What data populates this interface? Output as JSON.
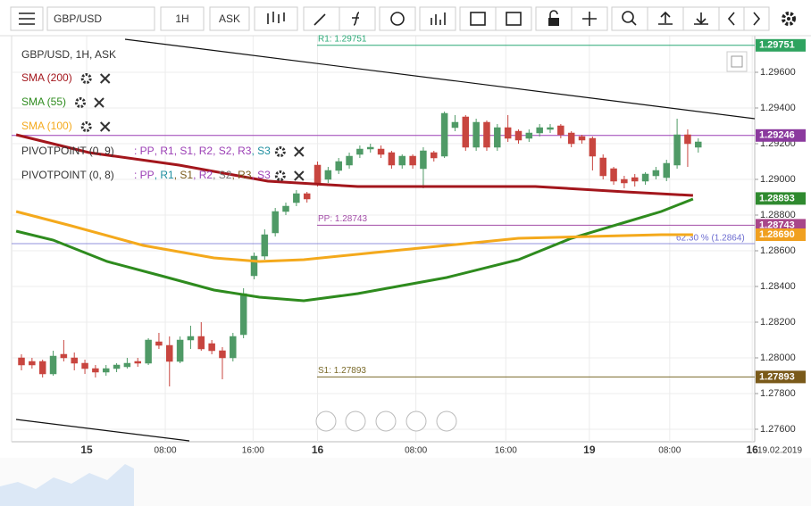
{
  "toolbar": {
    "symbol": "GBP/USD",
    "timeframe": "1H",
    "side": "ASK"
  },
  "chart_data": {
    "type": "candlestick",
    "legend_title": "GBP/USD, 1H, ASK",
    "open": [
      1.28,
      1.2798,
      1.2798,
      1.2791,
      1.2802,
      1.28,
      1.2797,
      1.2794,
      1.2792,
      1.2794,
      1.2795,
      1.2798,
      1.2797,
      1.2809,
      1.2807,
      1.2798,
      1.281,
      1.2812,
      1.2808,
      1.2804,
      1.28,
      1.2813,
      1.2846,
      1.2857,
      1.287,
      1.2882,
      1.2887,
      1.2892,
      1.2908,
      1.29,
      1.2905,
      1.2908,
      1.2914,
      1.2917,
      1.2917,
      1.2915,
      1.2908,
      1.2913,
      1.2906,
      1.2915,
      1.2913,
      1.2929,
      1.2935,
      1.2918,
      1.2932,
      1.2918,
      1.2929,
      1.2927,
      1.2923,
      1.2926,
      1.2928,
      1.293,
      1.2926,
      1.2924,
      1.2923,
      1.2912,
      1.2906,
      1.29,
      1.2901,
      1.2899,
      1.2902,
      1.2901,
      1.2908,
      1.2925,
      1.2918
    ],
    "high": [
      1.2802,
      1.28,
      1.2799,
      1.2804,
      1.281,
      1.2803,
      1.2799,
      1.2796,
      1.2796,
      1.2797,
      1.28,
      1.28,
      1.2811,
      1.2814,
      1.2812,
      1.2812,
      1.2818,
      1.282,
      1.281,
      1.2806,
      1.2814,
      1.2839,
      1.2859,
      1.2872,
      1.2884,
      1.2887,
      1.2894,
      1.2893,
      1.291,
      1.2907,
      1.2912,
      1.2915,
      1.2919,
      1.292,
      1.2919,
      1.2916,
      1.2914,
      1.2914,
      1.2918,
      1.2916,
      1.2938,
      1.2936,
      1.2936,
      1.2934,
      1.2933,
      1.2931,
      1.2936,
      1.2928,
      1.2928,
      1.2931,
      1.2931,
      1.2931,
      1.2927,
      1.2925,
      1.2924,
      1.2914,
      1.2907,
      1.2902,
      1.2903,
      1.2904,
      1.2907,
      1.2911,
      1.2934,
      1.2928,
      1.2923
    ],
    "low": [
      1.2793,
      1.2794,
      1.2789,
      1.279,
      1.2798,
      1.2793,
      1.2791,
      1.2789,
      1.279,
      1.2792,
      1.2794,
      1.2795,
      1.2796,
      1.2805,
      1.2784,
      1.2797,
      1.2805,
      1.2804,
      1.2802,
      1.2788,
      1.2798,
      1.2811,
      1.2844,
      1.2855,
      1.2868,
      1.288,
      1.2885,
      1.2887,
      1.2896,
      1.2898,
      1.2903,
      1.2906,
      1.2912,
      1.2915,
      1.2912,
      1.2906,
      1.2906,
      1.2906,
      1.2895,
      1.291,
      1.2912,
      1.2927,
      1.2916,
      1.2916,
      1.2916,
      1.2916,
      1.2921,
      1.292,
      1.2921,
      1.2924,
      1.2926,
      1.2923,
      1.2918,
      1.292,
      1.2905,
      1.29,
      1.2897,
      1.2895,
      1.2896,
      1.2897,
      1.29,
      1.2899,
      1.2906,
      1.2907,
      1.2915
    ],
    "close": [
      1.2796,
      1.2796,
      1.2791,
      1.2801,
      1.28,
      1.2797,
      1.2794,
      1.2792,
      1.2794,
      1.2796,
      1.2797,
      1.2797,
      1.281,
      1.2807,
      1.2798,
      1.281,
      1.2812,
      1.2805,
      1.2804,
      1.28,
      1.2812,
      1.2836,
      1.2857,
      1.2869,
      1.2882,
      1.2885,
      1.2892,
      1.2889,
      1.2898,
      1.2905,
      1.291,
      1.2913,
      1.2917,
      1.2918,
      1.2914,
      1.2908,
      1.2913,
      1.2908,
      1.2916,
      1.2912,
      1.2937,
      1.2932,
      1.2918,
      1.2932,
      1.2918,
      1.2929,
      1.2923,
      1.2922,
      1.2926,
      1.2929,
      1.2929,
      1.2925,
      1.292,
      1.2922,
      1.2913,
      1.2902,
      1.2899,
      1.2898,
      1.2899,
      1.2903,
      1.2905,
      1.2909,
      1.2925,
      1.292,
      1.2921
    ],
    "up_color": "#4f9a66",
    "down_color": "#c8453f",
    "overlays": [
      {
        "name": "SMA (200)",
        "color": "#a3161c",
        "x": [
          -0.5,
          6.4,
          14.9,
          23.3,
          31.8,
          40.2,
          48.6,
          57.1,
          63.5
        ],
        "values": [
          1.2925,
          1.2915,
          1.2908,
          1.2899,
          1.2896,
          1.2896,
          1.2896,
          1.2893,
          1.2891
        ]
      },
      {
        "name": "SMA (55)",
        "color": "#2e8b1e",
        "x": [
          -0.5,
          3.0,
          8.1,
          13.2,
          18.2,
          22.5,
          26.7,
          31.8,
          40.2,
          47.0,
          52.0,
          57.1,
          60.5,
          63.5
        ],
        "values": [
          1.2871,
          1.2866,
          1.2854,
          1.2846,
          1.2838,
          1.2834,
          1.2832,
          1.2836,
          1.2845,
          1.2855,
          1.2867,
          1.2876,
          1.2882,
          1.2889
        ]
      },
      {
        "name": "SMA (100)",
        "color": "#f4a91c",
        "x": [
          -0.5,
          4.7,
          11.5,
          18.2,
          22.5,
          26.7,
          33.4,
          40.2,
          47.0,
          53.7,
          60.5,
          63.5
        ],
        "values": [
          1.2882,
          1.2874,
          1.2863,
          1.2856,
          1.2854,
          1.2855,
          1.2859,
          1.2863,
          1.2867,
          1.2868,
          1.2869,
          1.2869
        ]
      }
    ],
    "pivots": [
      {
        "name": "PIVOTPOINT (0, 9)",
        "parts": [
          ": PP",
          ", R1",
          ", S1",
          ", R2",
          ", S2",
          ", R3",
          ", S3"
        ],
        "colors": [
          "#9b3fb5",
          "#9b3fb5",
          "#9b3fb5",
          "#9b3fb5",
          "#9b3fb5",
          "#9b3fb5",
          "#1f8fa0"
        ]
      },
      {
        "name": "PIVOTPOINT (0, 8)",
        "parts": [
          ": PP",
          ", R1",
          ", S1",
          ", R2",
          ", S2",
          ", R3",
          ", S3"
        ],
        "colors": [
          "#9b3fb5",
          "#1f8fa0",
          "#7a5a1a",
          "#9b3fb5",
          "#777777",
          "#7a5a1a",
          "#9b3fb5"
        ]
      }
    ],
    "levels": [
      {
        "label": "R1: 1.29751",
        "value": 1.29751,
        "color": "#2aa876"
      },
      {
        "label": "PP: 1.28743",
        "value": 1.28743,
        "color": "#a34ea8"
      },
      {
        "label": "S1: 1.27893",
        "value": 1.27893,
        "color": "#7a6a2a"
      }
    ],
    "current_line": {
      "value": 1.29246,
      "color": "#9b3fb5"
    },
    "fib": {
      "label": "62.30 % (1.2864)",
      "value": 1.2864,
      "color": "#6c6cd0"
    },
    "price_tags": [
      {
        "value": 1.29751,
        "label": "1.29751",
        "color": "#2ea35f"
      },
      {
        "value": 1.29246,
        "label": "1.29246",
        "color": "#8b3a9e"
      },
      {
        "value": 1.28893,
        "label": "1.28893",
        "color": "#2f8a2f"
      },
      {
        "value": 1.28743,
        "label": "1.28743",
        "color": "#a8468a"
      },
      {
        "value": 1.2869,
        "label": "1.28690",
        "color": "#f0a020"
      },
      {
        "value": 1.27893,
        "label": "1.27893",
        "color": "#7a5a1a"
      }
    ],
    "xlim": [
      -0.93,
      69.34
    ],
    "xticks": [
      {
        "value": 6.17,
        "label": "15"
      },
      {
        "value": 13.6,
        "label": "08:00"
      },
      {
        "value": 21.9,
        "label": "16:00"
      },
      {
        "value": 28.0,
        "label": "16"
      },
      {
        "value": 37.3,
        "label": "08:00"
      },
      {
        "value": 45.8,
        "label": "16:00"
      },
      {
        "value": 53.7,
        "label": "19"
      },
      {
        "value": 61.3,
        "label": "08:00"
      },
      {
        "value": 69.1,
        "label": "16"
      }
    ],
    "date_label": "19.02.2019",
    "ylim": [
      1.2753,
      1.29805
    ],
    "yticks": [
      {
        "value": 1.276,
        "label": "1.27600"
      },
      {
        "value": 1.278,
        "label": "1.27800"
      },
      {
        "value": 1.28,
        "label": "1.28000"
      },
      {
        "value": 1.282,
        "label": "1.28200"
      },
      {
        "value": 1.284,
        "label": "1.28400"
      },
      {
        "value": 1.286,
        "label": "1.28600"
      },
      {
        "value": 1.288,
        "label": "1.28800"
      },
      {
        "value": 1.29,
        "label": "1.29000"
      },
      {
        "value": 1.292,
        "label": "1.29200"
      },
      {
        "value": 1.294,
        "label": "1.29400"
      },
      {
        "value": 1.296,
        "label": "1.29600"
      }
    ],
    "grid": true
  }
}
